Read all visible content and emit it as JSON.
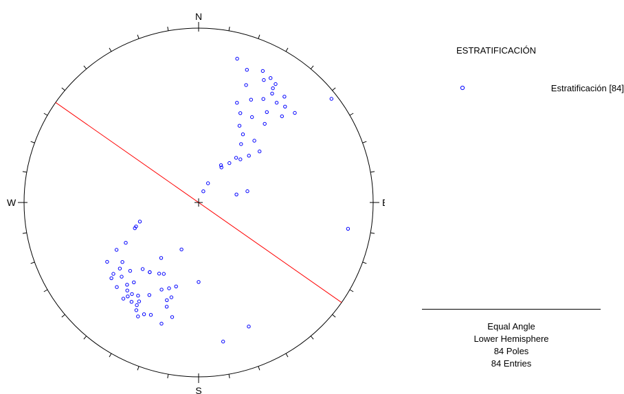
{
  "chart_data": {
    "type": "stereonet",
    "projection": "Equal Angle",
    "hemisphere": "Lower Hemisphere",
    "direction_labels": {
      "north": "N",
      "south": "S",
      "east": "E",
      "west": "W"
    },
    "legend": {
      "title": "ESTRATIFICACIÓN",
      "entries": [
        {
          "label": "Estratificación [84]",
          "color": "#0000ff",
          "symbol": "circle"
        }
      ]
    },
    "info": {
      "projection_label": "Equal Angle",
      "hemisphere_label": "Lower Hemisphere",
      "poles_label": "84 Poles",
      "entries_label": "84 Entries"
    },
    "great_circle": {
      "color": "#ff0000",
      "strike_trend": 125
    },
    "pole_color": "#0000ff",
    "poles": [
      [
        23,
        82
      ],
      [
        26,
        76
      ],
      [
        31,
        62
      ],
      [
        33,
        63
      ],
      [
        38,
        58
      ],
      [
        40,
        53
      ],
      [
        44,
        52
      ],
      [
        47,
        47
      ],
      [
        36,
        45
      ],
      [
        33,
        40
      ],
      [
        28,
        37
      ],
      [
        42,
        39
      ],
      [
        50,
        41
      ],
      [
        25,
        31
      ],
      [
        32,
        30
      ],
      [
        40,
        29
      ],
      [
        37,
        24
      ],
      [
        44,
        21
      ],
      [
        22,
        18
      ],
      [
        21,
        27
      ],
      [
        27,
        23
      ],
      [
        32,
        20
      ],
      [
        38,
        18
      ],
      [
        42,
        17
      ],
      [
        34,
        16
      ],
      [
        33,
        14
      ],
      [
        28,
        13
      ],
      [
        33,
        12
      ],
      [
        26,
        10
      ],
      [
        30,
        11
      ],
      [
        20,
        12
      ],
      [
        39,
        14
      ],
      [
        47,
        16
      ],
      [
        15,
        9
      ],
      [
        52,
        2
      ],
      [
        77,
        58
      ],
      [
        78,
        65
      ],
      [
        240,
        33
      ],
      [
        230,
        25
      ],
      [
        237,
        26
      ],
      [
        218,
        20
      ],
      [
        219,
        29
      ],
      [
        232,
        32
      ],
      [
        225,
        32
      ],
      [
        219,
        24
      ],
      [
        224,
        22
      ],
      [
        226,
        27
      ],
      [
        230,
        29
      ],
      [
        229,
        23
      ],
      [
        221,
        26
      ],
      [
        216,
        24
      ],
      [
        213,
        25
      ],
      [
        217,
        22
      ],
      [
        211,
        23
      ],
      [
        210,
        19
      ],
      [
        211,
        21
      ],
      [
        214,
        21
      ],
      [
        208,
        17
      ],
      [
        206,
        19
      ],
      [
        203,
        20
      ],
      [
        197,
        18
      ],
      [
        193,
        22
      ],
      [
        195,
        37
      ],
      [
        206,
        41
      ],
      [
        209,
        40
      ],
      [
        199,
        35
      ],
      [
        215,
        38
      ],
      [
        203,
        33
      ],
      [
        198,
        29
      ],
      [
        197,
        26
      ],
      [
        196,
        31
      ],
      [
        208,
        28
      ],
      [
        220,
        37
      ],
      [
        252,
        51
      ],
      [
        248,
        47
      ],
      [
        249,
        48
      ],
      [
        241,
        39
      ],
      [
        214,
        48
      ],
      [
        200,
        58
      ],
      [
        215,
        38
      ],
      [
        170,
        12
      ],
      [
        158,
        15
      ],
      [
        180,
        41
      ],
      [
        100,
        8
      ]
    ]
  }
}
